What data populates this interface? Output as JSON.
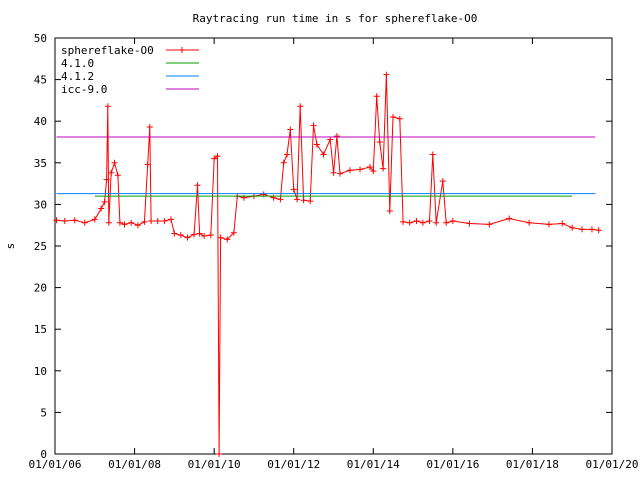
{
  "chart_data": {
    "type": "line",
    "title": "Raytracing run time in s for sphereflake-O0",
    "xlabel": "",
    "ylabel": "s",
    "x_axis": "date",
    "xlim": [
      "2006-01-01",
      "2020-01-01"
    ],
    "ylim": [
      0,
      50
    ],
    "x_ticks": [
      "01/01/06",
      "01/01/08",
      "01/01/10",
      "01/01/12",
      "01/01/14",
      "01/01/16",
      "01/01/18",
      "01/01/20"
    ],
    "y_ticks": [
      "0",
      "5",
      "10",
      "15",
      "20",
      "25",
      "30",
      "35",
      "40",
      "45",
      "50"
    ],
    "grid": false,
    "legend_position": "top-left",
    "series": [
      {
        "name": "sphereflake-O0",
        "color": "#ff0000",
        "style": "linespoints",
        "points": [
          [
            "2006-01-15",
            28.1
          ],
          [
            "2006-04-01",
            28.0
          ],
          [
            "2006-07-01",
            28.1
          ],
          [
            "2006-10-01",
            27.8
          ],
          [
            "2007-01-01",
            28.2
          ],
          [
            "2007-03-01",
            29.5
          ],
          [
            "2007-04-01",
            30.3
          ],
          [
            "2007-04-20",
            33.0
          ],
          [
            "2007-05-01",
            41.8
          ],
          [
            "2007-05-10",
            27.8
          ],
          [
            "2007-06-01",
            33.8
          ],
          [
            "2007-07-01",
            35.0
          ],
          [
            "2007-08-01",
            33.5
          ],
          [
            "2007-08-20",
            27.8
          ],
          [
            "2007-10-01",
            27.6
          ],
          [
            "2007-12-01",
            27.8
          ],
          [
            "2008-02-01",
            27.5
          ],
          [
            "2008-04-01",
            27.9
          ],
          [
            "2008-05-01",
            34.8
          ],
          [
            "2008-05-20",
            39.3
          ],
          [
            "2008-06-01",
            28.0
          ],
          [
            "2008-08-01",
            28.0
          ],
          [
            "2008-10-01",
            28.0
          ],
          [
            "2008-12-01",
            28.2
          ],
          [
            "2009-01-01",
            26.5
          ],
          [
            "2009-03-01",
            26.3
          ],
          [
            "2009-05-01",
            26.0
          ],
          [
            "2009-07-01",
            26.4
          ],
          [
            "2009-08-01",
            32.3
          ],
          [
            "2009-08-20",
            26.5
          ],
          [
            "2009-10-01",
            26.2
          ],
          [
            "2009-12-01",
            26.3
          ],
          [
            "2010-01-01",
            35.5
          ],
          [
            "2010-02-01",
            35.8
          ],
          [
            "2010-02-15",
            0.0
          ],
          [
            "2010-03-01",
            26.0
          ],
          [
            "2010-05-01",
            25.8
          ],
          [
            "2010-07-01",
            26.6
          ],
          [
            "2010-08-01",
            31.0
          ],
          [
            "2010-10-01",
            30.8
          ],
          [
            "2011-01-01",
            31.0
          ],
          [
            "2011-04-01",
            31.2
          ],
          [
            "2011-07-01",
            30.8
          ],
          [
            "2011-09-01",
            30.6
          ],
          [
            "2011-10-01",
            35.0
          ],
          [
            "2011-11-01",
            36.0
          ],
          [
            "2011-12-01",
            39.0
          ],
          [
            "2012-01-01",
            31.8
          ],
          [
            "2012-02-01",
            30.6
          ],
          [
            "2012-03-01",
            41.8
          ],
          [
            "2012-04-01",
            30.5
          ],
          [
            "2012-06-01",
            30.4
          ],
          [
            "2012-07-01",
            39.5
          ],
          [
            "2012-08-01",
            37.2
          ],
          [
            "2012-10-01",
            36.0
          ],
          [
            "2012-12-01",
            37.8
          ],
          [
            "2013-01-01",
            33.8
          ],
          [
            "2013-02-01",
            38.2
          ],
          [
            "2013-03-01",
            33.7
          ],
          [
            "2013-06-01",
            34.1
          ],
          [
            "2013-09-01",
            34.2
          ],
          [
            "2013-12-01",
            34.5
          ],
          [
            "2014-01-01",
            34.0
          ],
          [
            "2014-02-01",
            43.0
          ],
          [
            "2014-03-01",
            37.5
          ],
          [
            "2014-04-01",
            34.3
          ],
          [
            "2014-05-01",
            45.6
          ],
          [
            "2014-06-01",
            29.2
          ],
          [
            "2014-07-01",
            40.5
          ],
          [
            "2014-09-01",
            40.3
          ],
          [
            "2014-10-01",
            27.9
          ],
          [
            "2014-12-01",
            27.8
          ],
          [
            "2015-02-01",
            28.0
          ],
          [
            "2015-04-01",
            27.8
          ],
          [
            "2015-06-01",
            28.0
          ],
          [
            "2015-07-01",
            36.0
          ],
          [
            "2015-08-01",
            27.8
          ],
          [
            "2015-10-01",
            32.8
          ],
          [
            "2015-11-01",
            27.8
          ],
          [
            "2016-01-01",
            28.0
          ],
          [
            "2016-06-01",
            27.7
          ],
          [
            "2016-12-01",
            27.6
          ],
          [
            "2017-06-01",
            28.3
          ],
          [
            "2017-12-01",
            27.8
          ],
          [
            "2018-06-01",
            27.6
          ],
          [
            "2018-10-01",
            27.7
          ],
          [
            "2019-01-01",
            27.2
          ],
          [
            "2019-04-01",
            27.0
          ],
          [
            "2019-07-01",
            27.0
          ],
          [
            "2019-09-01",
            26.9
          ]
        ]
      },
      {
        "name": "4.1.0",
        "color": "#00a000",
        "style": "lines",
        "points": [
          [
            "2007-01-01",
            31.0
          ],
          [
            "2019-01-01",
            31.0
          ]
        ]
      },
      {
        "name": "4.1.2",
        "color": "#0080ff",
        "style": "lines",
        "points": [
          [
            "2006-01-15",
            31.3
          ],
          [
            "2019-08-01",
            31.3
          ]
        ]
      },
      {
        "name": "icc-9.0",
        "color": "#c000c0",
        "style": "lines",
        "points": [
          [
            "2006-01-15",
            38.1
          ],
          [
            "2019-08-01",
            38.1
          ]
        ]
      }
    ]
  }
}
